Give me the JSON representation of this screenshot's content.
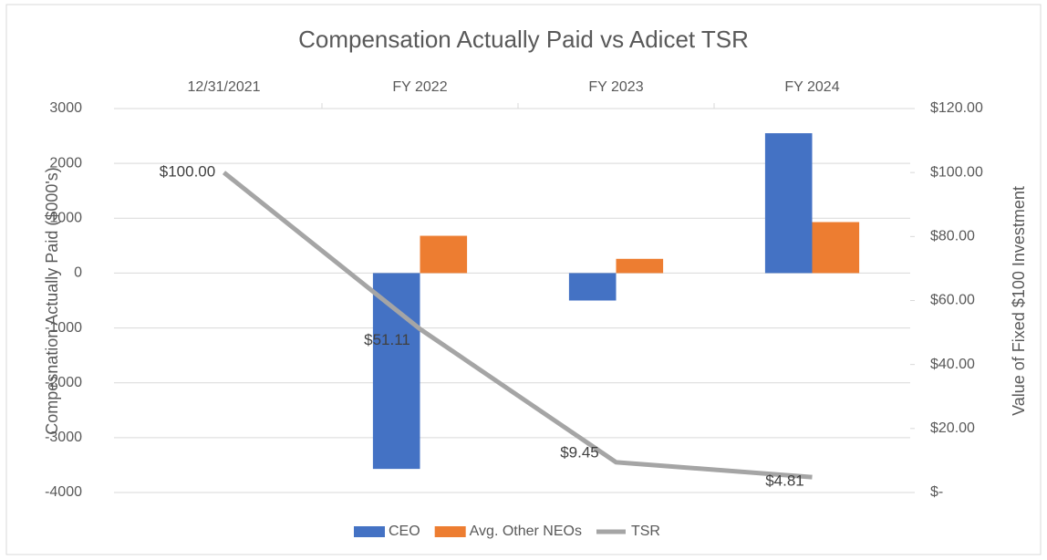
{
  "chart_data": {
    "type": "bar",
    "title": "Compensation Actually Paid vs Adicet TSR",
    "categories": [
      "12/31/2021",
      "FY 2022",
      "FY 2023",
      "FY 2024"
    ],
    "y_label": "Compesnation Actually Paid ($000's)",
    "y2_label": "Value of Fixed $100 Investment",
    "ylim": [
      -4000,
      3000
    ],
    "yticks": [
      -4000,
      -3000,
      -2000,
      -1000,
      0,
      1000,
      2000,
      3000
    ],
    "y2lim": [
      0,
      120
    ],
    "y2ticks": [
      {
        "value": 0,
        "label": "$-"
      },
      {
        "value": 20,
        "label": "$20.00"
      },
      {
        "value": 40,
        "label": "$40.00"
      },
      {
        "value": 60,
        "label": "$60.00"
      },
      {
        "value": 80,
        "label": "$80.00"
      },
      {
        "value": 100,
        "label": "$100.00"
      },
      {
        "value": 120,
        "label": "$120.00"
      }
    ],
    "grid": true,
    "legend": "bottom",
    "series": [
      {
        "name": "CEO",
        "type": "bar",
        "color": "#4472c4",
        "values": [
          null,
          -3570,
          -500,
          2550
        ]
      },
      {
        "name": "Avg. Other NEOs",
        "type": "bar",
        "color": "#ed7d31",
        "values": [
          null,
          680,
          260,
          930
        ]
      },
      {
        "name": "TSR",
        "type": "line",
        "axis": "y2",
        "color": "#a5a5a5",
        "values": [
          100,
          51.11,
          9.45,
          4.81
        ],
        "value_labels": [
          "$100.00",
          "$51.11",
          "$9.45",
          "$4.81"
        ]
      }
    ]
  }
}
